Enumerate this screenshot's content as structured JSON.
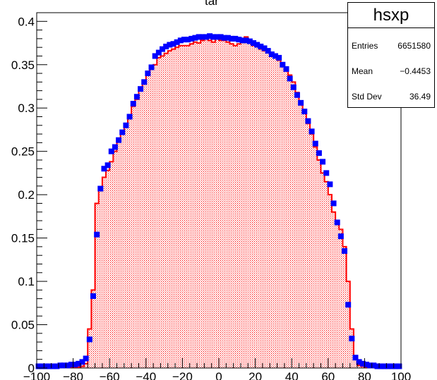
{
  "chart_data": {
    "type": "bar",
    "title": "tar",
    "xlim": [
      -100,
      100
    ],
    "ylim": [
      0,
      0.41
    ],
    "x_ticks": [
      -100,
      -80,
      -60,
      -40,
      -20,
      0,
      20,
      40,
      60,
      80,
      100
    ],
    "x_tick_labels": [
      "−100",
      "−80",
      "−60",
      "−40",
      "−20",
      "0",
      "20",
      "40",
      "60",
      "80",
      "100"
    ],
    "y_ticks": [
      0,
      0.05,
      0.1,
      0.15,
      0.2,
      0.25,
      0.3,
      0.35,
      0.4
    ],
    "y_tick_labels": [
      "0",
      "0.05",
      "0.1",
      "0.15",
      "0.2",
      "0.25",
      "0.3",
      "0.35",
      "0.4"
    ],
    "bin_width": 2,
    "series": [
      {
        "style": "histogram-filled",
        "color": "#ff0000",
        "bin_centers": [
          -99,
          -97,
          -95,
          -93,
          -91,
          -89,
          -87,
          -85,
          -83,
          -81,
          -79,
          -77,
          -75,
          -73,
          -71,
          -69,
          -67,
          -65,
          -63,
          -61,
          -59,
          -57,
          -55,
          -53,
          -51,
          -49,
          -47,
          -45,
          -43,
          -41,
          -39,
          -37,
          -35,
          -33,
          -31,
          -29,
          -27,
          -25,
          -23,
          -21,
          -19,
          -17,
          -15,
          -13,
          -11,
          -9,
          -7,
          -5,
          -3,
          -1,
          1,
          3,
          5,
          7,
          9,
          11,
          13,
          15,
          17,
          19,
          21,
          23,
          25,
          27,
          29,
          31,
          33,
          35,
          37,
          39,
          41,
          43,
          45,
          47,
          49,
          51,
          53,
          55,
          57,
          59,
          61,
          63,
          65,
          67,
          69,
          71,
          73,
          75,
          77,
          79,
          81,
          83,
          85,
          87,
          89,
          91,
          93,
          95,
          97,
          99
        ],
        "values": [
          0.001,
          0.001,
          0.001,
          0.001,
          0.001,
          0.001,
          0.001,
          0.001,
          0.001,
          0.001,
          0.001,
          0.001,
          0.002,
          0.005,
          0.045,
          0.09,
          0.19,
          0.208,
          0.22,
          0.228,
          0.238,
          0.25,
          0.262,
          0.272,
          0.28,
          0.29,
          0.302,
          0.31,
          0.32,
          0.33,
          0.34,
          0.345,
          0.35,
          0.358,
          0.36,
          0.363,
          0.366,
          0.368,
          0.37,
          0.372,
          0.372,
          0.372,
          0.374,
          0.376,
          0.375,
          0.378,
          0.38,
          0.378,
          0.376,
          0.38,
          0.378,
          0.378,
          0.376,
          0.374,
          0.372,
          0.374,
          0.378,
          0.382,
          0.376,
          0.372,
          0.372,
          0.368,
          0.366,
          0.364,
          0.36,
          0.36,
          0.355,
          0.352,
          0.345,
          0.338,
          0.33,
          0.318,
          0.305,
          0.295,
          0.282,
          0.27,
          0.255,
          0.24,
          0.225,
          0.215,
          0.2,
          0.18,
          0.17,
          0.16,
          0.14,
          0.1,
          0.045,
          0.01,
          0.003,
          0.002,
          0.001,
          0.001,
          0.001,
          0.001,
          0.001,
          0.001,
          0.001,
          0.001,
          0.001,
          0.001
        ]
      },
      {
        "style": "markers",
        "color": "#0000ff",
        "x": [
          -99,
          -97,
          -95,
          -93,
          -91,
          -89,
          -87,
          -85,
          -83,
          -81,
          -79,
          -77,
          -75,
          -73,
          -71,
          -69,
          -67,
          -65,
          -63,
          -61,
          -59,
          -57,
          -55,
          -53,
          -51,
          -49,
          -47,
          -45,
          -43,
          -41,
          -39,
          -37,
          -35,
          -33,
          -31,
          -29,
          -27,
          -25,
          -23,
          -21,
          -19,
          -17,
          -15,
          -13,
          -11,
          -9,
          -7,
          -5,
          -3,
          -1,
          1,
          3,
          5,
          7,
          9,
          11,
          13,
          15,
          17,
          19,
          21,
          23,
          25,
          27,
          29,
          31,
          33,
          35,
          37,
          39,
          41,
          43,
          45,
          47,
          49,
          51,
          53,
          55,
          57,
          59,
          61,
          63,
          65,
          67,
          69,
          71,
          73,
          75,
          77,
          79,
          81,
          83,
          85,
          87,
          89,
          91,
          93,
          95,
          97,
          99
        ],
        "y": [
          0.002,
          0.002,
          0.002,
          0.002,
          0.002,
          0.002,
          0.003,
          0.003,
          0.003,
          0.004,
          0.004,
          0.005,
          0.007,
          0.011,
          0.033,
          0.083,
          0.154,
          0.207,
          0.23,
          0.234,
          0.25,
          0.255,
          0.263,
          0.272,
          0.28,
          0.29,
          0.305,
          0.313,
          0.322,
          0.33,
          0.34,
          0.347,
          0.36,
          0.364,
          0.368,
          0.371,
          0.373,
          0.374,
          0.376,
          0.378,
          0.379,
          0.379,
          0.38,
          0.381,
          0.382,
          0.382,
          0.382,
          0.383,
          0.382,
          0.382,
          0.382,
          0.381,
          0.381,
          0.38,
          0.38,
          0.379,
          0.378,
          0.378,
          0.377,
          0.375,
          0.373,
          0.371,
          0.369,
          0.366,
          0.362,
          0.36,
          0.358,
          0.35,
          0.345,
          0.334,
          0.324,
          0.315,
          0.306,
          0.296,
          0.285,
          0.273,
          0.259,
          0.248,
          0.238,
          0.225,
          0.212,
          0.19,
          0.168,
          0.152,
          0.135,
          0.073,
          0.034,
          0.012,
          0.007,
          0.005,
          0.004,
          0.003,
          0.003,
          0.002,
          0.002,
          0.002,
          0.002,
          0.002,
          0.002,
          0.002
        ]
      }
    ]
  },
  "stats": {
    "name": "hsxp",
    "rows": [
      {
        "key": "Entries",
        "value": "6651580"
      },
      {
        "key": "Mean",
        "value": "−0.4453"
      },
      {
        "key": "Std Dev",
        "value": "36.49"
      }
    ]
  }
}
